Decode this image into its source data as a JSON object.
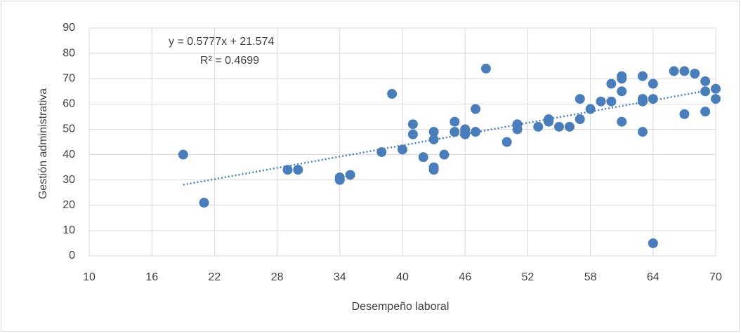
{
  "chart_data": {
    "type": "scatter",
    "x_label": "Desempeño laboral",
    "y_label": "Gestión administrativa",
    "annotations": [
      "y = 0.5777x + 21.574",
      "R² = 0.4699"
    ],
    "series": [
      {
        "name": "Gestión administrativa",
        "color": "#4a7ebb",
        "x": [
          19,
          21,
          29,
          30,
          34,
          34,
          35,
          38,
          39,
          40,
          41,
          41,
          42,
          43,
          43,
          43,
          43,
          44,
          45,
          45,
          46,
          46,
          46,
          47,
          47,
          48,
          50,
          51,
          51,
          53,
          54,
          54,
          55,
          56,
          57,
          57,
          58,
          59,
          60,
          60,
          61,
          61,
          61,
          61,
          63,
          63,
          63,
          63,
          64,
          64,
          64,
          66,
          67,
          67,
          68,
          69,
          69,
          69,
          70,
          70
        ],
        "values": [
          40,
          21,
          34,
          34,
          31,
          30,
          32,
          41,
          64,
          42,
          52,
          48,
          39,
          49,
          46,
          35,
          34,
          40,
          53,
          49,
          50,
          48,
          49,
          58,
          49,
          74,
          45,
          52,
          50,
          51,
          54,
          53,
          51,
          51,
          62,
          54,
          58,
          61,
          68,
          61,
          71,
          70,
          65,
          53,
          71,
          62,
          61,
          49,
          68,
          62,
          5,
          73,
          73,
          56,
          72,
          69,
          65,
          57,
          66,
          62
        ]
      }
    ],
    "trendline": "linear",
    "xlim": [
      10,
      70
    ],
    "xticks": [
      10,
      16,
      22,
      28,
      34,
      40,
      46,
      52,
      58,
      64,
      70
    ],
    "ylim": [
      0,
      90
    ],
    "yticks": [
      0,
      10,
      20,
      30,
      40,
      50,
      60,
      70,
      80,
      90
    ],
    "grid": true
  }
}
